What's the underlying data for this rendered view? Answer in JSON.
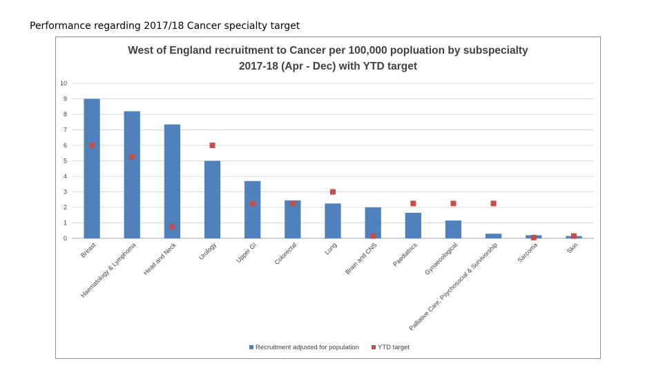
{
  "page": {
    "heading": "Performance regarding 2017/18 Cancer specialty target"
  },
  "chart_data": {
    "type": "bar",
    "title_lines": [
      "West of England recruitment to Cancer per 100,000 popluation by subspecialty",
      "2017-18 (Apr - Dec) with YTD target"
    ],
    "xlabel": "",
    "ylabel": "",
    "ylim": [
      0,
      10
    ],
    "yticks": [
      0,
      1,
      2,
      3,
      4,
      5,
      6,
      7,
      8,
      9,
      10
    ],
    "grid": true,
    "legend_position": "bottom",
    "categories": [
      "Breast",
      "Haematology & Lymphoma",
      "Head and Neck",
      "Urology",
      "Upper GI",
      "Colorectal",
      "Lung",
      "Brain and CNS",
      "Paediatrics",
      "Gynaecological",
      "Palliative Care, Psychosocial & Survivorship",
      "Sarcoma",
      "Skin"
    ],
    "series": [
      {
        "name": "Recruitment adjusted for population",
        "kind": "bar",
        "color": "#4f81bd",
        "values": [
          9.0,
          8.2,
          7.35,
          5.0,
          3.7,
          2.45,
          2.25,
          2.0,
          1.65,
          1.15,
          0.3,
          0.2,
          0.15
        ]
      },
      {
        "name": "YTD target",
        "kind": "marker",
        "color": "#c0504d",
        "values": [
          6.0,
          5.25,
          0.75,
          6.0,
          2.25,
          2.25,
          3.0,
          0.15,
          2.25,
          2.25,
          2.25,
          0.05,
          0.15
        ]
      }
    ]
  }
}
